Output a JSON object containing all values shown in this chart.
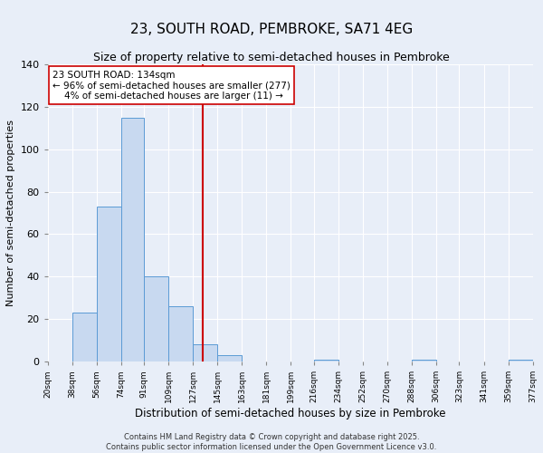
{
  "title": "23, SOUTH ROAD, PEMBROKE, SA71 4EG",
  "subtitle": "Size of property relative to semi-detached houses in Pembroke",
  "xlabel": "Distribution of semi-detached houses by size in Pembroke",
  "ylabel": "Number of semi-detached properties",
  "bin_edges": [
    20,
    38,
    56,
    74,
    91,
    109,
    127,
    145,
    163,
    181,
    199,
    216,
    234,
    252,
    270,
    288,
    306,
    323,
    341,
    359,
    377
  ],
  "bin_labels": [
    "20sqm",
    "38sqm",
    "56sqm",
    "74sqm",
    "91sqm",
    "109sqm",
    "127sqm",
    "145sqm",
    "163sqm",
    "181sqm",
    "199sqm",
    "216sqm",
    "234sqm",
    "252sqm",
    "270sqm",
    "288sqm",
    "306sqm",
    "323sqm",
    "341sqm",
    "359sqm",
    "377sqm"
  ],
  "counts": [
    0,
    23,
    73,
    115,
    40,
    26,
    8,
    3,
    0,
    0,
    0,
    1,
    0,
    0,
    0,
    1,
    0,
    0,
    0,
    1
  ],
  "bar_color": "#c8d9f0",
  "bar_edge_color": "#5b9bd5",
  "property_value": 134,
  "vline_color": "#cc0000",
  "annotation_line1": "23 SOUTH ROAD: 134sqm",
  "annotation_line2": "← 96% of semi-detached houses are smaller (277)",
  "annotation_line3": "    4% of semi-detached houses are larger (11) →",
  "annotation_box_color": "#ffffff",
  "annotation_box_edge": "#cc0000",
  "ylim": [
    0,
    140
  ],
  "yticks": [
    0,
    20,
    40,
    60,
    80,
    100,
    120,
    140
  ],
  "footer_text": "Contains HM Land Registry data © Crown copyright and database right 2025.\nContains public sector information licensed under the Open Government Licence v3.0.",
  "background_color": "#e8eef8",
  "plot_bg_color": "#e8eef8",
  "grid_color": "#ffffff",
  "title_fontsize": 11,
  "subtitle_fontsize": 9,
  "xlabel_fontsize": 8.5,
  "ylabel_fontsize": 8
}
